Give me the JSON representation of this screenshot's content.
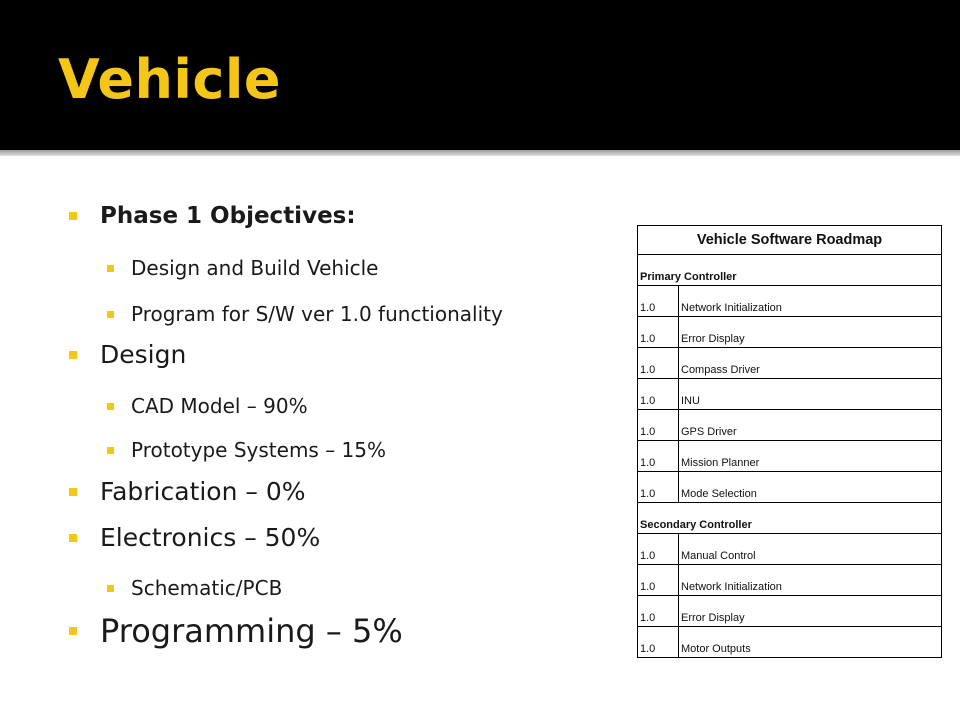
{
  "slide": {
    "title": "Vehicle",
    "colors": {
      "accent": "#f3c617",
      "title_bg": "#000000"
    }
  },
  "bullets": [
    {
      "text": "Phase 1 Objectives:",
      "level": 1,
      "bold": true
    },
    {
      "text": "Design and Build Vehicle",
      "level": 2
    },
    {
      "text": "Program for S/W ver 1.0 functionality",
      "level": 2
    },
    {
      "text": "Design",
      "level": 1
    },
    {
      "text": "CAD Model – 90%",
      "level": 2
    },
    {
      "text": "Prototype Systems – 15%",
      "level": 2
    },
    {
      "text": "Fabrication – 0%",
      "level": 1
    },
    {
      "text": "Electronics – 50%",
      "level": 1
    },
    {
      "text": "Schematic/PCB",
      "level": 2
    },
    {
      "text": "Programming – 5%",
      "level": 1
    }
  ],
  "roadmap": {
    "title": "Vehicle Software Roadmap",
    "sections": [
      {
        "name": "Primary Controller",
        "rows": [
          {
            "version": "1.0",
            "item": "Network Initialization"
          },
          {
            "version": "1.0",
            "item": "Error Display"
          },
          {
            "version": "1.0",
            "item": "Compass Driver"
          },
          {
            "version": "1.0",
            "item": "INU"
          },
          {
            "version": "1.0",
            "item": "GPS Driver"
          },
          {
            "version": "1.0",
            "item": "Mission Planner"
          },
          {
            "version": "1.0",
            "item": "Mode Selection"
          }
        ]
      },
      {
        "name": "Secondary Controller",
        "rows": [
          {
            "version": "1.0",
            "item": "Manual Control"
          },
          {
            "version": "1.0",
            "item": "Network Initialization"
          },
          {
            "version": "1.0",
            "item": "Error Display"
          },
          {
            "version": "1.0",
            "item": "Motor Outputs"
          }
        ]
      }
    ]
  }
}
